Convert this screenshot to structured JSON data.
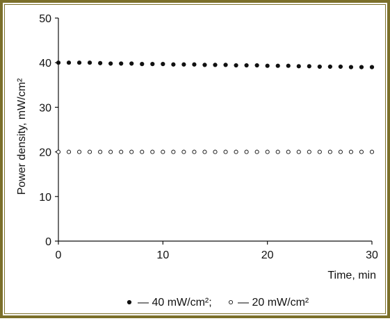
{
  "chart_data": {
    "type": "scatter",
    "xlabel": "Time, min",
    "ylabel": "Power density, mW/cm²",
    "xlim": [
      0,
      30
    ],
    "ylim": [
      0,
      50
    ],
    "xticks": [
      "0",
      "10",
      "20",
      "30"
    ],
    "yticks": [
      "0",
      "10",
      "20",
      "30",
      "40",
      "50"
    ],
    "grid": false,
    "legend_position": "bottom",
    "series": [
      {
        "name": "— 40 mW/cm²;",
        "marker": "filled-circle",
        "x": [
          0,
          1,
          2,
          3,
          4,
          5,
          6,
          7,
          8,
          9,
          10,
          11,
          12,
          13,
          14,
          15,
          16,
          17,
          18,
          19,
          20,
          21,
          22,
          23,
          24,
          25,
          26,
          27,
          28,
          29,
          30
        ],
        "y": [
          40.0,
          40.0,
          40.0,
          40.0,
          39.9,
          39.8,
          39.8,
          39.8,
          39.7,
          39.7,
          39.7,
          39.6,
          39.6,
          39.6,
          39.5,
          39.5,
          39.5,
          39.4,
          39.4,
          39.4,
          39.3,
          39.3,
          39.3,
          39.2,
          39.2,
          39.1,
          39.1,
          39.1,
          39.0,
          39.0,
          39.0
        ]
      },
      {
        "name": "— 20 mW/cm²",
        "marker": "open-circle",
        "x": [
          0,
          1,
          2,
          3,
          4,
          5,
          6,
          7,
          8,
          9,
          10,
          11,
          12,
          13,
          14,
          15,
          16,
          17,
          18,
          19,
          20,
          21,
          22,
          23,
          24,
          25,
          26,
          27,
          28,
          29,
          30
        ],
        "y": [
          20,
          20,
          20,
          20,
          20,
          20,
          20,
          20,
          20,
          20,
          20,
          20,
          20,
          20,
          20,
          20,
          20,
          20,
          20,
          20,
          20,
          20,
          20,
          20,
          20,
          20,
          20,
          20,
          20,
          20,
          20
        ]
      }
    ]
  },
  "colors": {
    "frame": "#7b6f2a",
    "ink": "#111111"
  }
}
